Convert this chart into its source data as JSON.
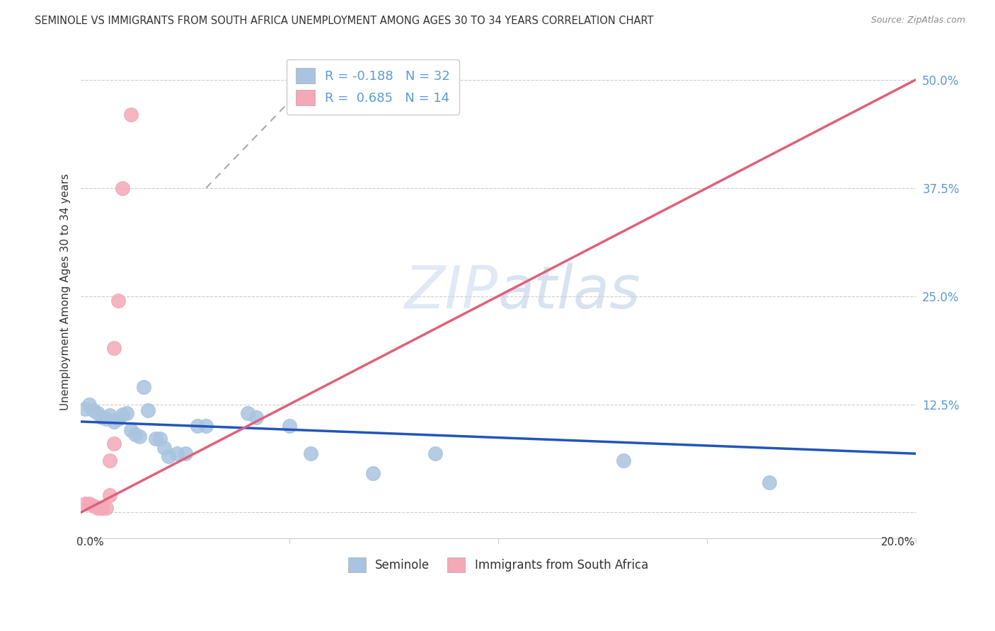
{
  "title": "SEMINOLE VS IMMIGRANTS FROM SOUTH AFRICA UNEMPLOYMENT AMONG AGES 30 TO 34 YEARS CORRELATION CHART",
  "source": "Source: ZipAtlas.com",
  "ylabel": "Unemployment Among Ages 30 to 34 years",
  "ytick_values": [
    0,
    0.125,
    0.25,
    0.375,
    0.5
  ],
  "xlim": [
    0.0,
    0.2
  ],
  "ylim": [
    -0.03,
    0.54
  ],
  "watermark": "ZIPatlas",
  "seminole_color": "#a8c4e0",
  "immigrants_color": "#f4a8b8",
  "seminole_line_color": "#2255bb",
  "immigrants_line_color": "#e0607a",
  "seminole_R": -0.188,
  "seminole_N": 32,
  "immigrants_R": 0.685,
  "immigrants_N": 14,
  "grid_color": "#cccccc",
  "background_color": "#ffffff",
  "seminole_scatter": [
    [
      0.001,
      0.12
    ],
    [
      0.002,
      0.125
    ],
    [
      0.003,
      0.118
    ],
    [
      0.004,
      0.115
    ],
    [
      0.005,
      0.11
    ],
    [
      0.006,
      0.108
    ],
    [
      0.007,
      0.112
    ],
    [
      0.008,
      0.105
    ],
    [
      0.009,
      0.108
    ],
    [
      0.01,
      0.113
    ],
    [
      0.011,
      0.115
    ],
    [
      0.012,
      0.095
    ],
    [
      0.013,
      0.09
    ],
    [
      0.014,
      0.088
    ],
    [
      0.015,
      0.145
    ],
    [
      0.016,
      0.118
    ],
    [
      0.018,
      0.085
    ],
    [
      0.019,
      0.085
    ],
    [
      0.02,
      0.075
    ],
    [
      0.021,
      0.065
    ],
    [
      0.023,
      0.068
    ],
    [
      0.025,
      0.068
    ],
    [
      0.028,
      0.1
    ],
    [
      0.03,
      0.1
    ],
    [
      0.04,
      0.115
    ],
    [
      0.042,
      0.11
    ],
    [
      0.05,
      0.1
    ],
    [
      0.055,
      0.068
    ],
    [
      0.07,
      0.045
    ],
    [
      0.085,
      0.068
    ],
    [
      0.13,
      0.06
    ],
    [
      0.165,
      0.035
    ]
  ],
  "immigrants_scatter": [
    [
      0.001,
      0.01
    ],
    [
      0.002,
      0.01
    ],
    [
      0.003,
      0.008
    ],
    [
      0.004,
      0.005
    ],
    [
      0.005,
      0.005
    ],
    [
      0.005,
      0.005
    ],
    [
      0.006,
      0.005
    ],
    [
      0.007,
      0.02
    ],
    [
      0.007,
      0.06
    ],
    [
      0.008,
      0.08
    ],
    [
      0.008,
      0.19
    ],
    [
      0.009,
      0.245
    ],
    [
      0.01,
      0.375
    ],
    [
      0.012,
      0.46
    ]
  ],
  "pink_line_x": [
    0.0,
    0.2
  ],
  "pink_line_y": [
    0.0,
    0.5
  ]
}
